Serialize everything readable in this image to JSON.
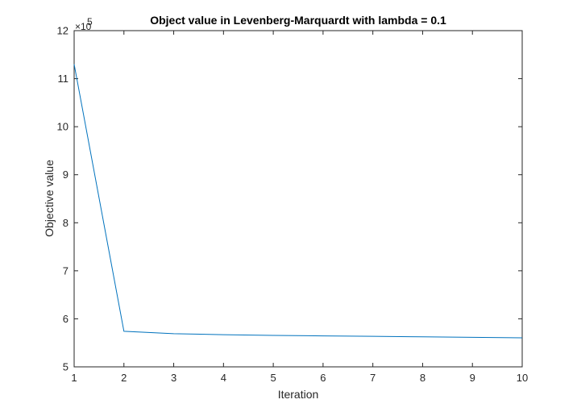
{
  "chart_data": {
    "type": "line",
    "title": "Object value in Levenberg-Marquardt with lambda = 0.1",
    "xlabel": "Iteration",
    "ylabel": "Objective value",
    "y_exponent_base": "×10",
    "y_exponent_power": "5",
    "xlim": [
      1,
      10
    ],
    "ylim": [
      5,
      12
    ],
    "x_ticks": [
      1,
      2,
      3,
      4,
      5,
      6,
      7,
      8,
      9,
      10
    ],
    "y_ticks": [
      5,
      6,
      7,
      8,
      9,
      10,
      11,
      12
    ],
    "y_tick_labels": [
      "5",
      "6",
      "7",
      "8",
      "9",
      "10",
      "11",
      "12"
    ],
    "grid": false,
    "legend": "none",
    "series": [
      {
        "color": "#0072BD",
        "x": [
          1,
          2,
          3,
          4,
          5,
          6,
          7,
          8,
          9,
          10
        ],
        "y": [
          11.3,
          5.74,
          5.69,
          5.67,
          5.655,
          5.645,
          5.635,
          5.625,
          5.615,
          5.605
        ]
      }
    ]
  }
}
